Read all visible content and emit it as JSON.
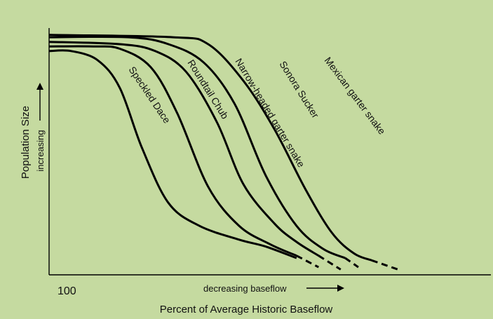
{
  "chart_data": {
    "type": "line",
    "xlabel": "Percent of Average Historic Baseflow",
    "x_note": "decreasing baseflow",
    "ylabel": "Population Size",
    "y_note": "increasing",
    "x_tick_label": "100",
    "grid": false,
    "legend": "none",
    "x_direction": "decreasing baseflow to the right",
    "series": [
      {
        "name": "Speckled Dace",
        "points": [
          [
            100,
            90
          ],
          [
            95,
            90
          ],
          [
            89,
            86
          ],
          [
            84,
            74
          ],
          [
            79,
            48
          ],
          [
            73,
            24
          ],
          [
            66,
            14
          ],
          [
            57,
            8
          ],
          [
            51,
            5
          ],
          [
            44,
            0
          ]
        ],
        "dashed_from_index": 9
      },
      {
        "name": "Roundtail Chub",
        "points": [
          [
            100,
            92
          ],
          [
            90,
            92
          ],
          [
            84,
            91
          ],
          [
            77,
            83
          ],
          [
            71,
            63
          ],
          [
            64,
            31
          ],
          [
            57,
            14
          ],
          [
            50,
            6
          ],
          [
            44,
            1
          ],
          [
            39,
            -4
          ]
        ],
        "dashed_from_index": 8
      },
      {
        "name": "Narrow-headed garter snake",
        "points": [
          [
            100,
            94
          ],
          [
            84,
            93
          ],
          [
            76,
            90
          ],
          [
            69,
            81
          ],
          [
            62,
            59
          ],
          [
            56,
            32
          ],
          [
            49,
            15
          ],
          [
            44,
            7
          ],
          [
            39,
            1
          ],
          [
            34,
            -5
          ]
        ],
        "dashed_from_index": 8
      },
      {
        "name": "Sonora Sucker",
        "points": [
          [
            100,
            96
          ],
          [
            82,
            96
          ],
          [
            73,
            93
          ],
          [
            65,
            85
          ],
          [
            58,
            67
          ],
          [
            51,
            36
          ],
          [
            44,
            14
          ],
          [
            38,
            4
          ],
          [
            33,
            0
          ],
          [
            30,
            -4
          ]
        ],
        "dashed_from_index": 8
      },
      {
        "name": "Mexican garter snake",
        "points": [
          [
            100,
            97
          ],
          [
            72,
            96
          ],
          [
            64,
            93
          ],
          [
            56,
            77
          ],
          [
            49,
            56
          ],
          [
            42,
            30
          ],
          [
            36,
            11
          ],
          [
            31,
            2
          ],
          [
            27,
            -1
          ],
          [
            21,
            -5
          ]
        ],
        "dashed_from_index": 8
      }
    ]
  }
}
